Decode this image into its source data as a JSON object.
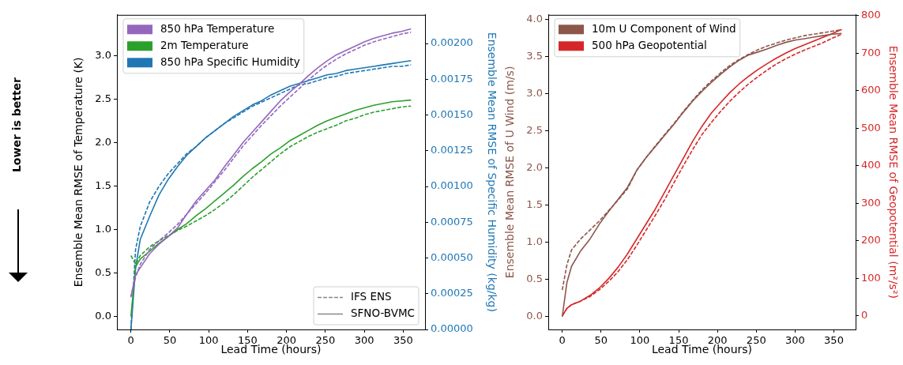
{
  "chart_data": [
    {
      "type": "line",
      "xlabel": "Lead Time (hours)",
      "ylabel": "Ensemble Mean RMSE of Temperature (K)",
      "y2label": "Ensemble Mean RMSE of Specific Humidity (kg/kg)",
      "x": [
        0,
        6,
        12,
        24,
        36,
        48,
        60,
        72,
        84,
        96,
        108,
        120,
        132,
        144,
        156,
        168,
        180,
        192,
        204,
        216,
        228,
        240,
        252,
        264,
        276,
        288,
        300,
        312,
        324,
        336,
        348,
        360
      ],
      "xlim": [
        -18,
        378
      ],
      "xticks": [
        0,
        50,
        100,
        150,
        200,
        250,
        300,
        350
      ],
      "ylim": [
        -0.15,
        3.47
      ],
      "yticks": [
        {
          "value": 0,
          "label": "0.0"
        },
        0.5,
        {
          "value": 1,
          "label": "1.0"
        },
        1.5,
        {
          "value": 2,
          "label": "2.0"
        },
        2.5,
        {
          "value": 3,
          "label": "3.0"
        }
      ],
      "y2lim": [
        0,
        0.0022
      ],
      "y2ticks": [
        {
          "value": 0,
          "label": "0.00000"
        },
        0.00025,
        {
          "value": 0.0005,
          "label": "0.00050"
        },
        0.00075,
        {
          "value": 0.001,
          "label": "0.00100"
        },
        0.00125,
        {
          "value": 0.0015,
          "label": "0.00150"
        },
        0.00175,
        {
          "value": 0.002,
          "label": "0.00200"
        }
      ],
      "grid": false,
      "legend": "top left",
      "marker": "none",
      "annotations": [
        "IFS ENS",
        "SFNO-BVMC",
        "Lower is better"
      ],
      "series": [
        {
          "name": "850 hPa Temperature",
          "color": "#9467bd",
          "line_style": "dashed",
          "values": [
            0.22,
            0.45,
            0.6,
            0.77,
            0.87,
            0.96,
            1.06,
            1.18,
            1.3,
            1.42,
            1.55,
            1.68,
            1.82,
            1.96,
            2.08,
            2.2,
            2.31,
            2.42,
            2.52,
            2.62,
            2.72,
            2.81,
            2.89,
            2.96,
            3.02,
            3.07,
            3.12,
            3.16,
            3.19,
            3.22,
            3.25,
            3.27
          ]
        },
        {
          "color": "#9467bd",
          "line_style": "solid",
          "values": [
            0.23,
            0.48,
            0.56,
            0.72,
            0.83,
            0.92,
            1.02,
            1.18,
            1.33,
            1.45,
            1.57,
            1.72,
            1.86,
            2.0,
            2.12,
            2.24,
            2.36,
            2.48,
            2.58,
            2.67,
            2.77,
            2.86,
            2.94,
            3.01,
            3.06,
            3.11,
            3.16,
            3.2,
            3.23,
            3.26,
            3.28,
            3.31
          ]
        },
        {
          "name": "2m Temperature",
          "color": "#2ca02c",
          "line_style": "dashed",
          "values": [
            0.7,
            0.6,
            0.7,
            0.8,
            0.87,
            0.93,
            0.99,
            1.04,
            1.1,
            1.16,
            1.23,
            1.31,
            1.4,
            1.5,
            1.6,
            1.69,
            1.78,
            1.87,
            1.95,
            2.01,
            2.07,
            2.12,
            2.16,
            2.2,
            2.25,
            2.28,
            2.32,
            2.35,
            2.37,
            2.39,
            2.41,
            2.42
          ]
        },
        {
          "color": "#2ca02c",
          "line_style": "solid",
          "values": [
            0.0,
            0.57,
            0.66,
            0.75,
            0.84,
            0.92,
            1.0,
            1.07,
            1.16,
            1.24,
            1.33,
            1.42,
            1.51,
            1.61,
            1.7,
            1.78,
            1.87,
            1.94,
            2.02,
            2.08,
            2.14,
            2.2,
            2.25,
            2.29,
            2.33,
            2.37,
            2.4,
            2.43,
            2.45,
            2.47,
            2.48,
            2.49
          ]
        },
        {
          "name": "850 hPa Specific Humidity",
          "color": "#1f77b4",
          "line_style": "dashed",
          "axis": "y2",
          "values": [
            0,
            0.00056,
            0.00072,
            0.00089,
            0.001,
            0.00109,
            0.00116,
            0.00123,
            0.00128,
            0.00134,
            0.00139,
            0.00144,
            0.00148,
            0.00152,
            0.00156,
            0.00159,
            0.00162,
            0.00165,
            0.00168,
            0.00171,
            0.00172,
            0.00174,
            0.00176,
            0.00177,
            0.00179,
            0.0018,
            0.00181,
            0.00182,
            0.00183,
            0.00184,
            0.00184,
            0.00185
          ]
        },
        {
          "color": "#1f77b4",
          "line_style": "solid",
          "axis": "y2",
          "values": [
            0,
            0.00043,
            0.00063,
            0.00079,
            0.00094,
            0.00105,
            0.00114,
            0.00122,
            0.00128,
            0.00134,
            0.00139,
            0.00144,
            0.00149,
            0.00153,
            0.00157,
            0.0016,
            0.00164,
            0.00167,
            0.0017,
            0.00172,
            0.00174,
            0.00176,
            0.00178,
            0.00179,
            0.00181,
            0.00182,
            0.00183,
            0.00184,
            0.00185,
            0.00186,
            0.00187,
            0.00188
          ]
        }
      ]
    },
    {
      "type": "line",
      "xlabel": "Lead Time (hours)",
      "ylabel": "Ensemble Mean RMSE of U Wind (m/s)",
      "y2label": "Ensemble Mean RMSE of Geopotential (m²/s²)",
      "x": [
        0,
        6,
        12,
        24,
        36,
        48,
        60,
        72,
        84,
        96,
        108,
        120,
        132,
        144,
        156,
        168,
        180,
        192,
        204,
        216,
        228,
        240,
        252,
        264,
        276,
        288,
        300,
        312,
        324,
        336,
        348,
        360
      ],
      "xlim": [
        -18,
        378
      ],
      "xticks": [
        0,
        50,
        100,
        150,
        200,
        250,
        300,
        350
      ],
      "ylim": [
        -0.17,
        4.06
      ],
      "yticks": [
        {
          "value": 0,
          "label": "0.0"
        },
        0.5,
        {
          "value": 1,
          "label": "1.0"
        },
        1.5,
        {
          "value": 2,
          "label": "2.0"
        },
        2.5,
        {
          "value": 3,
          "label": "3.0"
        },
        3.5,
        {
          "value": 4,
          "label": "4.0"
        }
      ],
      "y2lim": [
        -36,
        802
      ],
      "y2ticks": [
        0,
        100,
        200,
        300,
        400,
        500,
        600,
        700,
        800
      ],
      "grid": false,
      "legend": "top left",
      "marker": "none",
      "series": [
        {
          "name": "10m U Component of Wind",
          "color": "#8c564b",
          "line_style": "dashed",
          "values": [
            0.36,
            0.7,
            0.9,
            1.05,
            1.17,
            1.29,
            1.43,
            1.57,
            1.72,
            1.97,
            2.14,
            2.3,
            2.45,
            2.6,
            2.76,
            2.91,
            3.05,
            3.17,
            3.28,
            3.38,
            3.46,
            3.53,
            3.59,
            3.64,
            3.68,
            3.72,
            3.75,
            3.78,
            3.8,
            3.82,
            3.84,
            3.86
          ]
        },
        {
          "color": "#8c564b",
          "line_style": "solid",
          "values": [
            0,
            0.46,
            0.68,
            0.89,
            1.05,
            1.25,
            1.42,
            1.58,
            1.74,
            1.97,
            2.14,
            2.29,
            2.44,
            2.59,
            2.75,
            2.9,
            3.03,
            3.15,
            3.26,
            3.36,
            3.45,
            3.52,
            3.56,
            3.6,
            3.65,
            3.69,
            3.72,
            3.74,
            3.76,
            3.78,
            3.8,
            3.81
          ]
        },
        {
          "name": "500 hPa Geopotential",
          "color": "#d62728",
          "line_style": "dashed",
          "axis": "y2",
          "values": [
            0,
            20,
            30,
            40,
            52,
            70,
            92,
            118,
            150,
            188,
            228,
            268,
            310,
            355,
            400,
            443,
            483,
            515,
            545,
            572,
            596,
            618,
            637,
            655,
            671,
            685,
            697,
            708,
            718,
            728,
            740,
            750
          ]
        },
        {
          "color": "#d62728",
          "line_style": "solid",
          "axis": "y2",
          "values": [
            0,
            20,
            30,
            40,
            55,
            75,
            100,
            130,
            165,
            205,
            245,
            285,
            330,
            375,
            420,
            465,
            505,
            540,
            568,
            595,
            618,
            638,
            656,
            672,
            687,
            700,
            712,
            722,
            732,
            742,
            752,
            763
          ]
        }
      ]
    }
  ]
}
